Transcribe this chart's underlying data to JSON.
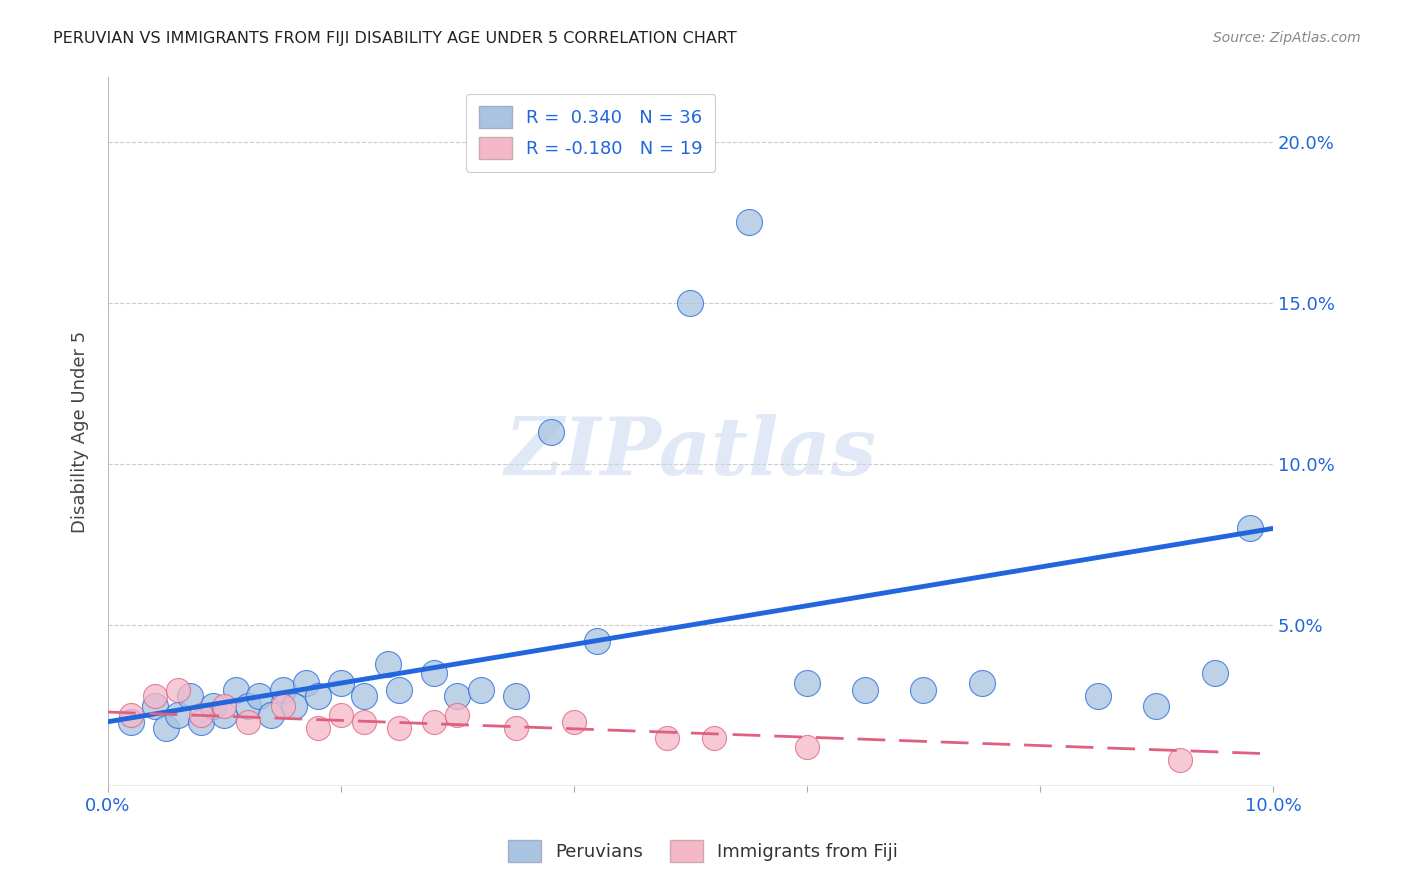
{
  "title": "PERUVIAN VS IMMIGRANTS FROM FIJI DISABILITY AGE UNDER 5 CORRELATION CHART",
  "source": "Source: ZipAtlas.com",
  "ylabel": "Disability Age Under 5",
  "xlabel": "",
  "xlim": [
    0.0,
    0.1
  ],
  "ylim": [
    0.0,
    0.22
  ],
  "xticks": [
    0.0,
    0.02,
    0.04,
    0.06,
    0.08,
    0.1
  ],
  "yticks": [
    0.0,
    0.05,
    0.1,
    0.15,
    0.2
  ],
  "ytick_labels": [
    "",
    "5.0%",
    "10.0%",
    "15.0%",
    "20.0%"
  ],
  "xtick_labels": [
    "0.0%",
    "",
    "",
    "",
    "",
    "10.0%"
  ],
  "blue_R": 0.34,
  "blue_N": 36,
  "pink_R": -0.18,
  "pink_N": 19,
  "blue_color": "#a8c4e0",
  "blue_line_color": "#2266dd",
  "pink_color": "#f4b8c8",
  "pink_line_color": "#e06080",
  "blue_scatter_x": [
    0.002,
    0.004,
    0.005,
    0.006,
    0.007,
    0.008,
    0.009,
    0.01,
    0.011,
    0.012,
    0.013,
    0.014,
    0.015,
    0.016,
    0.017,
    0.018,
    0.02,
    0.022,
    0.024,
    0.025,
    0.028,
    0.03,
    0.032,
    0.035,
    0.038,
    0.042,
    0.05,
    0.055,
    0.06,
    0.065,
    0.07,
    0.075,
    0.085,
    0.09,
    0.095,
    0.098
  ],
  "blue_scatter_y": [
    0.02,
    0.025,
    0.018,
    0.022,
    0.028,
    0.02,
    0.025,
    0.022,
    0.03,
    0.025,
    0.028,
    0.022,
    0.03,
    0.025,
    0.032,
    0.028,
    0.032,
    0.028,
    0.038,
    0.03,
    0.035,
    0.028,
    0.03,
    0.028,
    0.11,
    0.045,
    0.15,
    0.175,
    0.032,
    0.03,
    0.03,
    0.032,
    0.028,
    0.025,
    0.035,
    0.08
  ],
  "pink_scatter_x": [
    0.002,
    0.004,
    0.006,
    0.008,
    0.01,
    0.012,
    0.015,
    0.018,
    0.02,
    0.022,
    0.025,
    0.028,
    0.03,
    0.035,
    0.04,
    0.048,
    0.052,
    0.06,
    0.092
  ],
  "pink_scatter_y": [
    0.022,
    0.028,
    0.03,
    0.022,
    0.025,
    0.02,
    0.025,
    0.018,
    0.022,
    0.02,
    0.018,
    0.02,
    0.022,
    0.018,
    0.02,
    0.015,
    0.015,
    0.012,
    0.008
  ],
  "blue_line_x0": 0.0,
  "blue_line_y0": 0.02,
  "blue_line_x1": 0.1,
  "blue_line_y1": 0.08,
  "pink_line_x0": 0.0,
  "pink_line_y0": 0.023,
  "pink_line_x1": 0.1,
  "pink_line_y1": 0.01,
  "watermark_text": "ZIPatlas",
  "background_color": "#ffffff",
  "grid_color": "#cccccc"
}
